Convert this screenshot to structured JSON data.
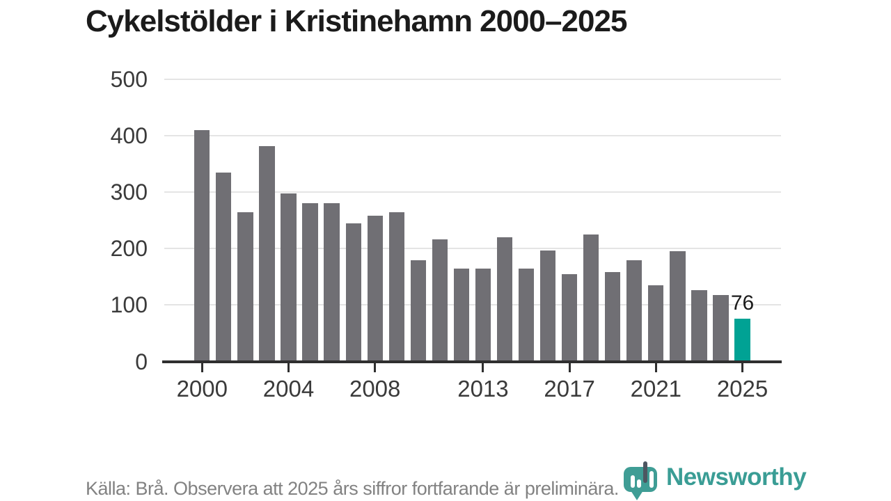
{
  "page": {
    "title": "Cykelstölder i Kristinehamn 2000–2025",
    "footer": {
      "source_note": "Källa: Brå. Observera att 2025 års siffror fortfarande är preliminära.",
      "brand_name": "Newsworthy"
    }
  },
  "colors": {
    "background": "#ffffff",
    "title_text": "#1b1b1b",
    "axis_text": "#3a3a3a",
    "gridline": "#e4e4e4",
    "axis_line": "#2f2f2f",
    "bar_default": "#706f74",
    "bar_highlight": "#00a294",
    "value_label_text": "#1b1b1b",
    "footer_text": "#828282",
    "brand_teal": "#3a9d95",
    "logo_bubble": "#3f9d95",
    "logo_dark_bar": "#4d5661"
  },
  "chart_data": {
    "type": "bar",
    "title": "Cykelstölder i Kristinehamn 2000–2025",
    "xlabel": "",
    "ylabel": "",
    "categories": [
      2000,
      2001,
      2002,
      2003,
      2004,
      2005,
      2006,
      2007,
      2008,
      2009,
      2010,
      2011,
      2012,
      2013,
      2014,
      2015,
      2016,
      2017,
      2018,
      2019,
      2020,
      2021,
      2022,
      2023,
      2024,
      2025
    ],
    "values": [
      410,
      335,
      265,
      382,
      298,
      280,
      281,
      245,
      258,
      264,
      180,
      217,
      165,
      165,
      220,
      165,
      197,
      155,
      225,
      158,
      179,
      135,
      195,
      126,
      118,
      76
    ],
    "highlight_category": 2025,
    "highlight_value_label": "76",
    "ylim": [
      0,
      500
    ],
    "yticks": [
      0,
      100,
      200,
      300,
      400,
      500
    ],
    "xticks": [
      2000,
      2004,
      2008,
      2013,
      2017,
      2021,
      2025
    ],
    "grid": true,
    "legend_position": "none"
  }
}
